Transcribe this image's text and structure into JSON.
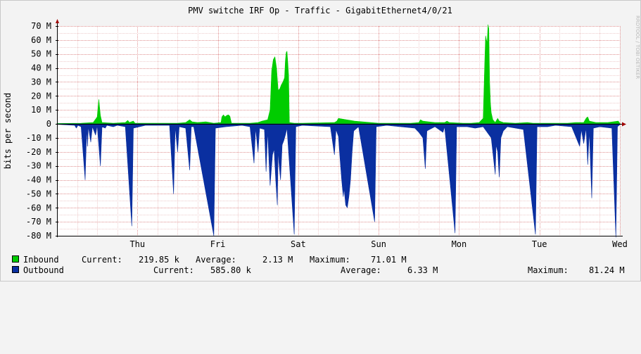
{
  "chart_data": {
    "type": "area",
    "title": "PMV switche IRF Op - Traffic - GigabitEthernet4/0/21",
    "ylabel": "bits per second",
    "watermark": "RRDTOOL / TOBI OETIKER",
    "ylim": [
      -80000000,
      70000000
    ],
    "yticks": [
      {
        "value": 70000000,
        "label": "70 M"
      },
      {
        "value": 60000000,
        "label": "60 M"
      },
      {
        "value": 50000000,
        "label": "50 M"
      },
      {
        "value": 40000000,
        "label": "40 M"
      },
      {
        "value": 30000000,
        "label": "30 M"
      },
      {
        "value": 20000000,
        "label": "20 M"
      },
      {
        "value": 10000000,
        "label": "10 M"
      },
      {
        "value": 0,
        "label": "0"
      },
      {
        "value": -10000000,
        "label": "-10 M"
      },
      {
        "value": -20000000,
        "label": "-20 M"
      },
      {
        "value": -30000000,
        "label": "-30 M"
      },
      {
        "value": -40000000,
        "label": "-40 M"
      },
      {
        "value": -50000000,
        "label": "-50 M"
      },
      {
        "value": -60000000,
        "label": "-60 M"
      },
      {
        "value": -70000000,
        "label": "-70 M"
      },
      {
        "value": -80000000,
        "label": "-80 M"
      }
    ],
    "xlim": [
      0,
      7
    ],
    "xticks": [
      {
        "value": 1,
        "label": "Thu"
      },
      {
        "value": 2,
        "label": "Fri"
      },
      {
        "value": 3,
        "label": "Sat"
      },
      {
        "value": 4,
        "label": "Sun"
      },
      {
        "value": 5,
        "label": "Mon"
      },
      {
        "value": 6,
        "label": "Tue"
      },
      {
        "value": 7,
        "label": "Wed"
      }
    ],
    "grid": true,
    "series": [
      {
        "name": "Inbound",
        "color": "#00cc00",
        "direction": "up",
        "points": [
          [
            0.0,
            0.3
          ],
          [
            0.3,
            0.5
          ],
          [
            0.45,
            1.0
          ],
          [
            0.5,
            5.0
          ],
          [
            0.52,
            17.5
          ],
          [
            0.54,
            6.0
          ],
          [
            0.56,
            1.0
          ],
          [
            0.7,
            0.5
          ],
          [
            0.85,
            1.0
          ],
          [
            0.88,
            2.5
          ],
          [
            0.9,
            1.0
          ],
          [
            0.95,
            2.0
          ],
          [
            0.97,
            0.5
          ],
          [
            1.2,
            0.5
          ],
          [
            1.5,
            0.5
          ],
          [
            1.6,
            1.0
          ],
          [
            1.65,
            3.0
          ],
          [
            1.68,
            1.5
          ],
          [
            1.75,
            1.0
          ],
          [
            1.85,
            1.5
          ],
          [
            1.95,
            0.5
          ],
          [
            2.04,
            1.0
          ],
          [
            2.05,
            5.0
          ],
          [
            2.07,
            6.5
          ],
          [
            2.09,
            5.0
          ],
          [
            2.11,
            6.0
          ],
          [
            2.13,
            6.5
          ],
          [
            2.15,
            5.5
          ],
          [
            2.17,
            0.5
          ],
          [
            2.4,
            0.5
          ],
          [
            2.5,
            1.0
          ],
          [
            2.55,
            2.0
          ],
          [
            2.62,
            3.0
          ],
          [
            2.65,
            10.0
          ],
          [
            2.67,
            38.0
          ],
          [
            2.69,
            46.0
          ],
          [
            2.71,
            48.0
          ],
          [
            2.73,
            40.0
          ],
          [
            2.75,
            24.0
          ],
          [
            2.77,
            25.0
          ],
          [
            2.79,
            28.0
          ],
          [
            2.81,
            30.0
          ],
          [
            2.83,
            33.0
          ],
          [
            2.84,
            45.0
          ],
          [
            2.85,
            51.0
          ],
          [
            2.86,
            52.0
          ],
          [
            2.87,
            44.0
          ],
          [
            2.88,
            35.0
          ],
          [
            2.89,
            1.0
          ],
          [
            2.95,
            0.5
          ],
          [
            3.05,
            0.5
          ],
          [
            3.45,
            1.0
          ],
          [
            3.48,
            2.0
          ],
          [
            3.5,
            4.0
          ],
          [
            3.55,
            3.5
          ],
          [
            3.6,
            3.0
          ],
          [
            3.65,
            2.5
          ],
          [
            3.7,
            2.0
          ],
          [
            3.8,
            1.5
          ],
          [
            3.9,
            1.0
          ],
          [
            4.0,
            0.5
          ],
          [
            4.4,
            0.5
          ],
          [
            4.5,
            1.0
          ],
          [
            4.52,
            3.0
          ],
          [
            4.55,
            2.0
          ],
          [
            4.62,
            1.5
          ],
          [
            4.7,
            1.0
          ],
          [
            4.82,
            1.0
          ],
          [
            4.85,
            2.0
          ],
          [
            4.88,
            1.0
          ],
          [
            5.05,
            0.5
          ],
          [
            5.15,
            0.5
          ],
          [
            5.25,
            1.0
          ],
          [
            5.3,
            4.0
          ],
          [
            5.32,
            45.0
          ],
          [
            5.33,
            63.0
          ],
          [
            5.34,
            60.0
          ],
          [
            5.35,
            58.0
          ],
          [
            5.36,
            71.0
          ],
          [
            5.37,
            68.0
          ],
          [
            5.38,
            30.0
          ],
          [
            5.39,
            15.0
          ],
          [
            5.4,
            8.0
          ],
          [
            5.42,
            3.0
          ],
          [
            5.45,
            1.0
          ],
          [
            5.48,
            4.0
          ],
          [
            5.5,
            2.0
          ],
          [
            5.55,
            1.0
          ],
          [
            5.7,
            0.5
          ],
          [
            5.85,
            1.0
          ],
          [
            5.92,
            0.5
          ],
          [
            6.15,
            0.5
          ],
          [
            6.35,
            0.5
          ],
          [
            6.45,
            1.0
          ],
          [
            6.55,
            1.0
          ],
          [
            6.58,
            4.0
          ],
          [
            6.6,
            5.0
          ],
          [
            6.62,
            2.0
          ],
          [
            6.7,
            1.0
          ],
          [
            6.85,
            1.0
          ],
          [
            6.98,
            2.0
          ],
          [
            7.0,
            0.3
          ]
        ]
      },
      {
        "name": "Outbound",
        "color": "#0a2fa0",
        "direction": "down",
        "points": [
          [
            0.0,
            0.3
          ],
          [
            0.22,
            1.0
          ],
          [
            0.24,
            3.0
          ],
          [
            0.26,
            1.0
          ],
          [
            0.3,
            2.0
          ],
          [
            0.35,
            40.0
          ],
          [
            0.37,
            3.0
          ],
          [
            0.38,
            16.0
          ],
          [
            0.39,
            2.0
          ],
          [
            0.42,
            13.0
          ],
          [
            0.44,
            2.0
          ],
          [
            0.48,
            8.0
          ],
          [
            0.5,
            1.0
          ],
          [
            0.54,
            30.0
          ],
          [
            0.56,
            2.0
          ],
          [
            0.6,
            3.0
          ],
          [
            0.62,
            1.0
          ],
          [
            0.7,
            2.0
          ],
          [
            0.75,
            1.0
          ],
          [
            0.85,
            2.0
          ],
          [
            0.93,
            73.0
          ],
          [
            0.95,
            3.0
          ],
          [
            1.1,
            1.0
          ],
          [
            1.4,
            1.0
          ],
          [
            1.45,
            50.0
          ],
          [
            1.47,
            2.0
          ],
          [
            1.5,
            20.0
          ],
          [
            1.52,
            2.0
          ],
          [
            1.6,
            3.0
          ],
          [
            1.65,
            33.0
          ],
          [
            1.67,
            2.0
          ],
          [
            1.7,
            2.0
          ],
          [
            1.95,
            80.0
          ],
          [
            1.97,
            3.0
          ],
          [
            2.1,
            2.0
          ],
          [
            2.3,
            1.0
          ],
          [
            2.4,
            2.0
          ],
          [
            2.45,
            28.0
          ],
          [
            2.47,
            3.0
          ],
          [
            2.5,
            20.0
          ],
          [
            2.52,
            3.0
          ],
          [
            2.58,
            4.0
          ],
          [
            2.6,
            34.0
          ],
          [
            2.62,
            5.0
          ],
          [
            2.65,
            44.0
          ],
          [
            2.68,
            22.0
          ],
          [
            2.7,
            18.0
          ],
          [
            2.72,
            40.0
          ],
          [
            2.74,
            58.0
          ],
          [
            2.75,
            18.0
          ],
          [
            2.76,
            28.0
          ],
          [
            2.78,
            40.0
          ],
          [
            2.8,
            15.0
          ],
          [
            2.82,
            12.0
          ],
          [
            2.84,
            8.0
          ],
          [
            2.86,
            3.0
          ],
          [
            2.95,
            79.0
          ],
          [
            2.97,
            2.0
          ],
          [
            3.05,
            1.0
          ],
          [
            3.4,
            2.0
          ],
          [
            3.45,
            22.0
          ],
          [
            3.47,
            4.0
          ],
          [
            3.5,
            9.0
          ],
          [
            3.52,
            25.0
          ],
          [
            3.54,
            40.0
          ],
          [
            3.56,
            52.0
          ],
          [
            3.57,
            46.0
          ],
          [
            3.59,
            58.0
          ],
          [
            3.61,
            60.0
          ],
          [
            3.63,
            52.0
          ],
          [
            3.65,
            40.0
          ],
          [
            3.67,
            20.0
          ],
          [
            3.69,
            5.0
          ],
          [
            3.75,
            2.0
          ],
          [
            3.95,
            70.0
          ],
          [
            3.97,
            2.0
          ],
          [
            4.1,
            1.0
          ],
          [
            4.45,
            3.0
          ],
          [
            4.5,
            6.0
          ],
          [
            4.55,
            10.0
          ],
          [
            4.58,
            32.0
          ],
          [
            4.6,
            5.0
          ],
          [
            4.7,
            2.0
          ],
          [
            4.8,
            6.0
          ],
          [
            4.82,
            2.0
          ],
          [
            4.95,
            78.0
          ],
          [
            4.97,
            2.0
          ],
          [
            5.1,
            2.0
          ],
          [
            5.2,
            3.0
          ],
          [
            5.3,
            2.0
          ],
          [
            5.4,
            10.0
          ],
          [
            5.45,
            36.0
          ],
          [
            5.46,
            15.0
          ],
          [
            5.48,
            20.0
          ],
          [
            5.5,
            38.0
          ],
          [
            5.52,
            10.0
          ],
          [
            5.55,
            5.0
          ],
          [
            5.6,
            2.0
          ],
          [
            5.8,
            4.0
          ],
          [
            5.95,
            79.0
          ],
          [
            5.97,
            2.0
          ],
          [
            6.1,
            2.0
          ],
          [
            6.2,
            1.0
          ],
          [
            6.4,
            2.0
          ],
          [
            6.5,
            16.0
          ],
          [
            6.52,
            4.0
          ],
          [
            6.55,
            14.0
          ],
          [
            6.58,
            3.0
          ],
          [
            6.6,
            29.0
          ],
          [
            6.62,
            5.0
          ],
          [
            6.65,
            53.0
          ],
          [
            6.67,
            3.0
          ],
          [
            6.75,
            2.0
          ],
          [
            6.9,
            3.0
          ],
          [
            6.95,
            81.0
          ],
          [
            6.97,
            2.0
          ],
          [
            7.0,
            0.5
          ]
        ]
      }
    ]
  },
  "legend": {
    "inbound": {
      "name": "Inbound",
      "current_label": "Current:",
      "current": "219.85 k",
      "average_label": "Average:",
      "average": "2.13 M",
      "maximum_label": "Maximum:",
      "maximum": "71.01 M",
      "color": "#00cc00"
    },
    "outbound": {
      "name": "Outbound",
      "current_label": "Current:",
      "current": "585.80 k",
      "average_label": "Average:",
      "average": "6.33 M",
      "maximum_label": "Maximum:",
      "maximum": "81.24 M",
      "color": "#0a2fa0"
    }
  }
}
